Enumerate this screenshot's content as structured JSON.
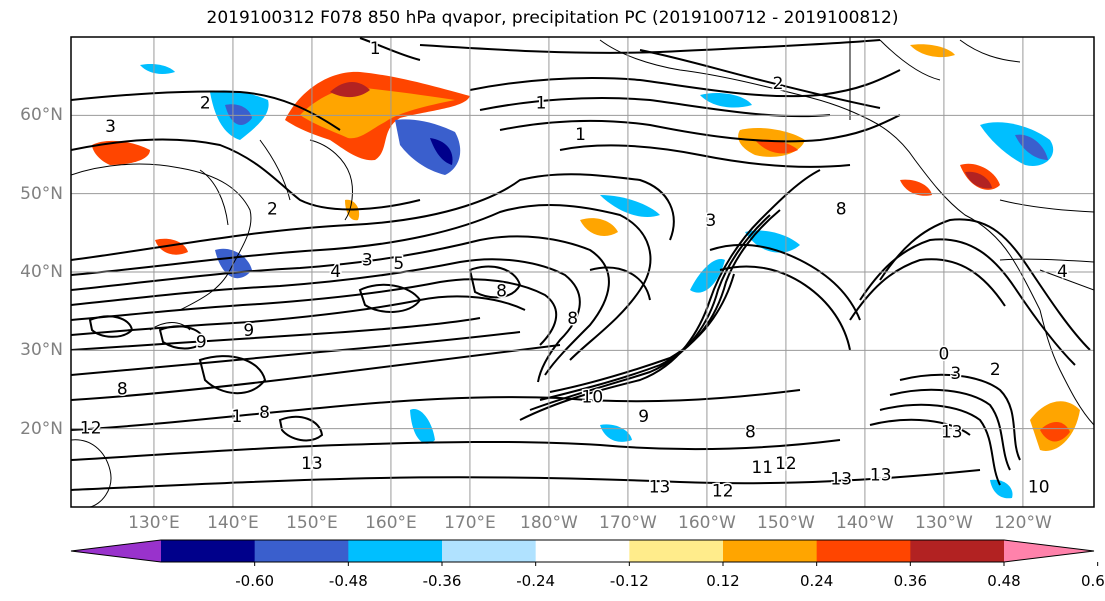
{
  "title": "2019100312 F078 850 hPa qvapor, precipitation PC (2019100712 - 2019100812)",
  "lat_labels": [
    {
      "label": "60°N",
      "lat": 60
    },
    {
      "label": "50°N",
      "lat": 50
    },
    {
      "label": "40°N",
      "lat": 40
    },
    {
      "label": "30°N",
      "lat": 30
    },
    {
      "label": "20°N",
      "lat": 20
    }
  ],
  "lon_labels": [
    {
      "label": "130°E",
      "lon": 130
    },
    {
      "label": "140°E",
      "lon": 140
    },
    {
      "label": "150°E",
      "lon": 150
    },
    {
      "label": "160°E",
      "lon": 160
    },
    {
      "label": "170°E",
      "lon": 170
    },
    {
      "label": "180°W",
      "lon": 180
    },
    {
      "label": "170°W",
      "lon": 190
    },
    {
      "label": "160°W",
      "lon": 200
    },
    {
      "label": "150°W",
      "lon": 210
    },
    {
      "label": "140°W",
      "lon": 220
    },
    {
      "label": "130°W",
      "lon": 230
    },
    {
      "label": "120°W",
      "lon": 240
    }
  ],
  "extent": {
    "lon_min": 119.5,
    "lon_max": 249,
    "lat_min": 10,
    "lat_max": 70
  },
  "colorbar": {
    "colors": [
      "#9932cc",
      "#00008b",
      "#3a5fcd",
      "#00bfff",
      "#b0e2ff",
      "#ffffff",
      "#ffec8b",
      "#ffa500",
      "#ff4500",
      "#b22222",
      "#ff82ab"
    ],
    "tick_labels": [
      "-0.60",
      "-0.48",
      "-0.36",
      "-0.24",
      "-0.12",
      "0.12",
      "0.24",
      "0.36",
      "0.48",
      "0.60"
    ]
  },
  "contour_labels": [
    {
      "text": "1",
      "lon": 158,
      "lat": 68.5
    },
    {
      "text": "2",
      "lon": 136.5,
      "lat": 61.5
    },
    {
      "text": "1",
      "lon": 179,
      "lat": 61.5
    },
    {
      "text": "1",
      "lon": 184,
      "lat": 57.5
    },
    {
      "text": "2",
      "lon": 209,
      "lat": 64
    },
    {
      "text": "3",
      "lon": 124.5,
      "lat": 58.5
    },
    {
      "text": "2",
      "lon": 145,
      "lat": 48
    },
    {
      "text": "3",
      "lon": 157,
      "lat": 41.5
    },
    {
      "text": "4",
      "lon": 153,
      "lat": 40
    },
    {
      "text": "5",
      "lon": 161,
      "lat": 41
    },
    {
      "text": "3",
      "lon": 200.5,
      "lat": 46.5
    },
    {
      "text": "8",
      "lon": 217,
      "lat": 48
    },
    {
      "text": "8",
      "lon": 174,
      "lat": 37.5
    },
    {
      "text": "8",
      "lon": 183,
      "lat": 34
    },
    {
      "text": "9",
      "lon": 142,
      "lat": 32.5
    },
    {
      "text": "9",
      "lon": 136,
      "lat": 31
    },
    {
      "text": "8",
      "lon": 126,
      "lat": 25
    },
    {
      "text": "1",
      "lon": 140.5,
      "lat": 21.5
    },
    {
      "text": "8",
      "lon": 144,
      "lat": 22
    },
    {
      "text": "12",
      "lon": 122,
      "lat": 20
    },
    {
      "text": "13",
      "lon": 150,
      "lat": 15.5
    },
    {
      "text": "10",
      "lon": 185.5,
      "lat": 24
    },
    {
      "text": "9",
      "lon": 192,
      "lat": 21.5
    },
    {
      "text": "8",
      "lon": 205.5,
      "lat": 19.5
    },
    {
      "text": "11",
      "lon": 207,
      "lat": 15
    },
    {
      "text": "12",
      "lon": 210,
      "lat": 15.5
    },
    {
      "text": "13",
      "lon": 194,
      "lat": 12.5
    },
    {
      "text": "12",
      "lon": 202,
      "lat": 12
    },
    {
      "text": "13",
      "lon": 217,
      "lat": 13.5
    },
    {
      "text": "13",
      "lon": 222,
      "lat": 14
    },
    {
      "text": "13",
      "lon": 231,
      "lat": 19.5
    },
    {
      "text": "0",
      "lon": 230,
      "lat": 29.5
    },
    {
      "text": "2",
      "lon": 236.5,
      "lat": 27.5
    },
    {
      "text": "3",
      "lon": 231.5,
      "lat": 27
    },
    {
      "text": "10",
      "lon": 242,
      "lat": 12.5
    },
    {
      "text": "4",
      "lon": 245,
      "lat": 40
    }
  ]
}
